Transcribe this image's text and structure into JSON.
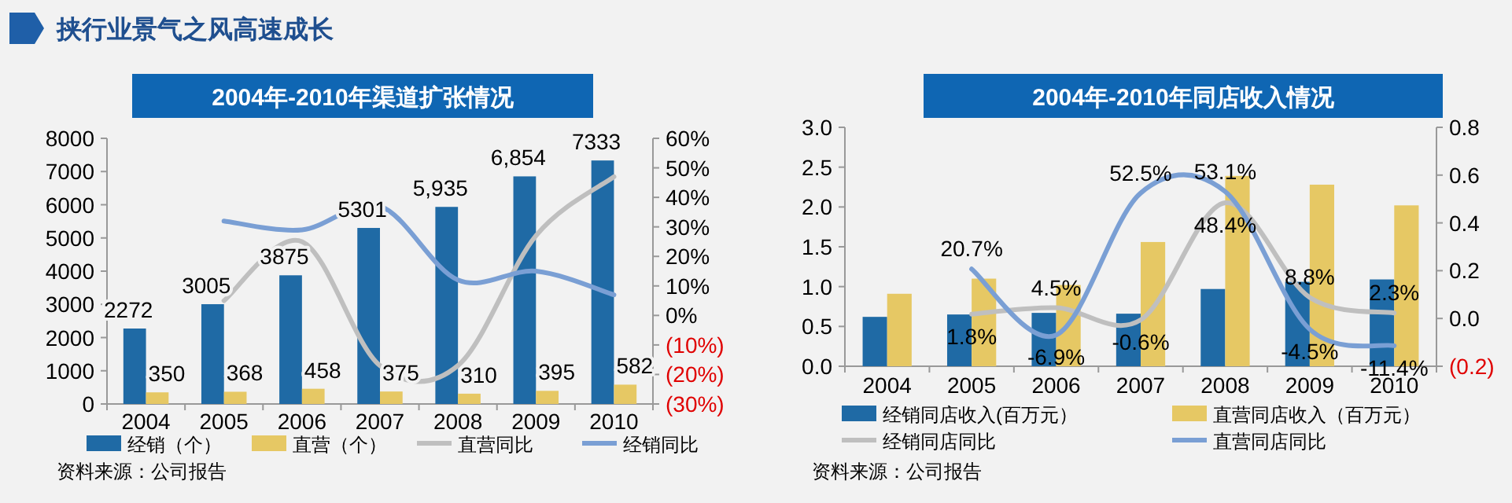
{
  "chart_data": [
    {
      "type": "bar",
      "title": "2004年-2010年渠道扩张情况",
      "annotations": [
        "挟行业景气之风高速成长",
        "资料来源：公司报告"
      ],
      "categories": [
        "2004",
        "2005",
        "2006",
        "2007",
        "2008",
        "2009",
        "2010"
      ],
      "series": [
        {
          "name": "经销（个）",
          "color": "#1f6aa5",
          "values": [
            2272,
            3005,
            3875,
            5301,
            5935,
            6854,
            7333
          ],
          "value_labels": [
            "2272",
            "3005",
            "3875",
            "5301",
            "5,935",
            "6,854",
            "7333"
          ]
        },
        {
          "name": "直营（个）",
          "color": "#e6c864",
          "values": [
            350,
            368,
            458,
            375,
            310,
            395,
            582
          ],
          "value_labels": [
            "350",
            "368",
            "458",
            "375",
            "310",
            "395",
            "582"
          ]
        },
        {
          "name": "直营同比",
          "type": "line",
          "axis": "y2",
          "color": "#bfbfbf",
          "values": [
            null,
            5,
            25,
            -17,
            -17,
            27,
            47
          ]
        },
        {
          "name": "经销同比",
          "type": "line",
          "axis": "y2",
          "color": "#7a9fd4",
          "values": [
            null,
            32,
            29,
            37,
            12,
            15,
            7
          ]
        }
      ],
      "ylim": [
        0,
        8000
      ],
      "yticks": [
        0,
        1000,
        2000,
        3000,
        4000,
        5000,
        6000,
        7000,
        8000
      ],
      "y2lim": [
        -30,
        60
      ],
      "y2ticks": [
        {
          "value": -30,
          "label": "(30%)"
        },
        {
          "value": -20,
          "label": "(20%)"
        },
        {
          "value": -10,
          "label": "(10%)"
        },
        {
          "value": 0,
          "label": "0%"
        },
        {
          "value": 10,
          "label": "10%"
        },
        {
          "value": 20,
          "label": "20%"
        },
        {
          "value": 30,
          "label": "30%"
        },
        {
          "value": 40,
          "label": "40%"
        },
        {
          "value": 50,
          "label": "50%"
        },
        {
          "value": 60,
          "label": "60%"
        }
      ],
      "legend": "bottom",
      "marker": "none"
    },
    {
      "type": "bar",
      "title": "2004年-2010年同店收入情况",
      "annotations": [
        "资料来源：公司报告"
      ],
      "categories": [
        "2004",
        "2005",
        "2006",
        "2007",
        "2008",
        "2009",
        "2010"
      ],
      "series": [
        {
          "name": "经销同店收入(百万元）",
          "color": "#1f6aa5",
          "values": [
            0.62,
            0.65,
            0.67,
            0.66,
            0.97,
            1.06,
            1.09
          ]
        },
        {
          "name": "直营同店收入（百万元）",
          "color": "#e6c864",
          "values": [
            0.91,
            1.1,
            1.02,
            1.56,
            2.39,
            2.28,
            2.02
          ]
        },
        {
          "name": "经销同店同比",
          "type": "line",
          "axis": "y2",
          "color": "#bfbfbf",
          "values": [
            null,
            0.018,
            0.045,
            -0.006,
            0.484,
            0.088,
            0.023
          ],
          "value_labels": [
            null,
            "1.8%",
            "4.5%",
            "-0.6%",
            "48.4%",
            "8.8%",
            "2.3%"
          ]
        },
        {
          "name": "直营同店同比",
          "type": "line",
          "axis": "y2",
          "color": "#7a9fd4",
          "values": [
            null,
            0.207,
            -0.069,
            0.525,
            0.531,
            -0.045,
            -0.114
          ],
          "value_labels": [
            null,
            "20.7%",
            "-6.9%",
            "52.5%",
            "53.1%",
            "-4.5%",
            "-11.4%"
          ]
        }
      ],
      "ylim": [
        0,
        3
      ],
      "yticks": [
        {
          "value": 0,
          "label": "0.0"
        },
        {
          "value": 0.5,
          "label": "0.5"
        },
        {
          "value": 1,
          "label": "1.0"
        },
        {
          "value": 1.5,
          "label": "1.5"
        },
        {
          "value": 2,
          "label": "2.0"
        },
        {
          "value": 2.5,
          "label": "2.5"
        },
        {
          "value": 3,
          "label": "3.0"
        }
      ],
      "y2lim": [
        -0.2,
        0.8
      ],
      "y2ticks": [
        {
          "value": -0.2,
          "label": "(0.2)"
        },
        {
          "value": 0,
          "label": "0.0"
        },
        {
          "value": 0.2,
          "label": "0.2"
        },
        {
          "value": 0.4,
          "label": "0.4"
        },
        {
          "value": 0.6,
          "label": "0.6"
        },
        {
          "value": 0.8,
          "label": "0.8"
        }
      ],
      "legend": "bottom",
      "marker": "none"
    }
  ]
}
